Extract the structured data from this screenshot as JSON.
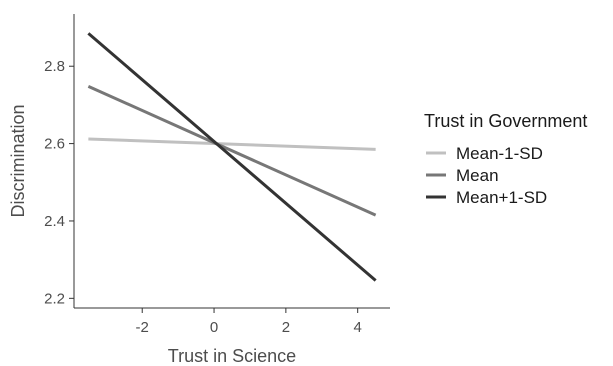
{
  "chart_data": {
    "type": "line",
    "xlabel": "Trust in Science",
    "ylabel": "Discrimination",
    "xlim": [
      -3.9,
      4.9
    ],
    "ylim": [
      2.175,
      2.935
    ],
    "x_ticks": [
      -2,
      0,
      2,
      4
    ],
    "x_tick_labels": [
      "-2",
      "0",
      "2",
      "4"
    ],
    "y_ticks": [
      2.2,
      2.4,
      2.6,
      2.8
    ],
    "y_tick_labels": [
      "2.2",
      "2.4",
      "2.6",
      "2.8"
    ],
    "grid": false,
    "legend": {
      "title": "Trust in Government",
      "position": "right"
    },
    "series": [
      {
        "name": "Mean-1-SD",
        "color": "#c0c0c0",
        "x": [
          -3.5,
          4.5
        ],
        "y": [
          2.612,
          2.585
        ]
      },
      {
        "name": "Mean",
        "color": "#777777",
        "x": [
          -3.5,
          4.5
        ],
        "y": [
          2.748,
          2.415
        ]
      },
      {
        "name": "Mean+1-SD",
        "color": "#333333",
        "x": [
          -3.5,
          4.5
        ],
        "y": [
          2.885,
          2.246
        ]
      }
    ]
  }
}
